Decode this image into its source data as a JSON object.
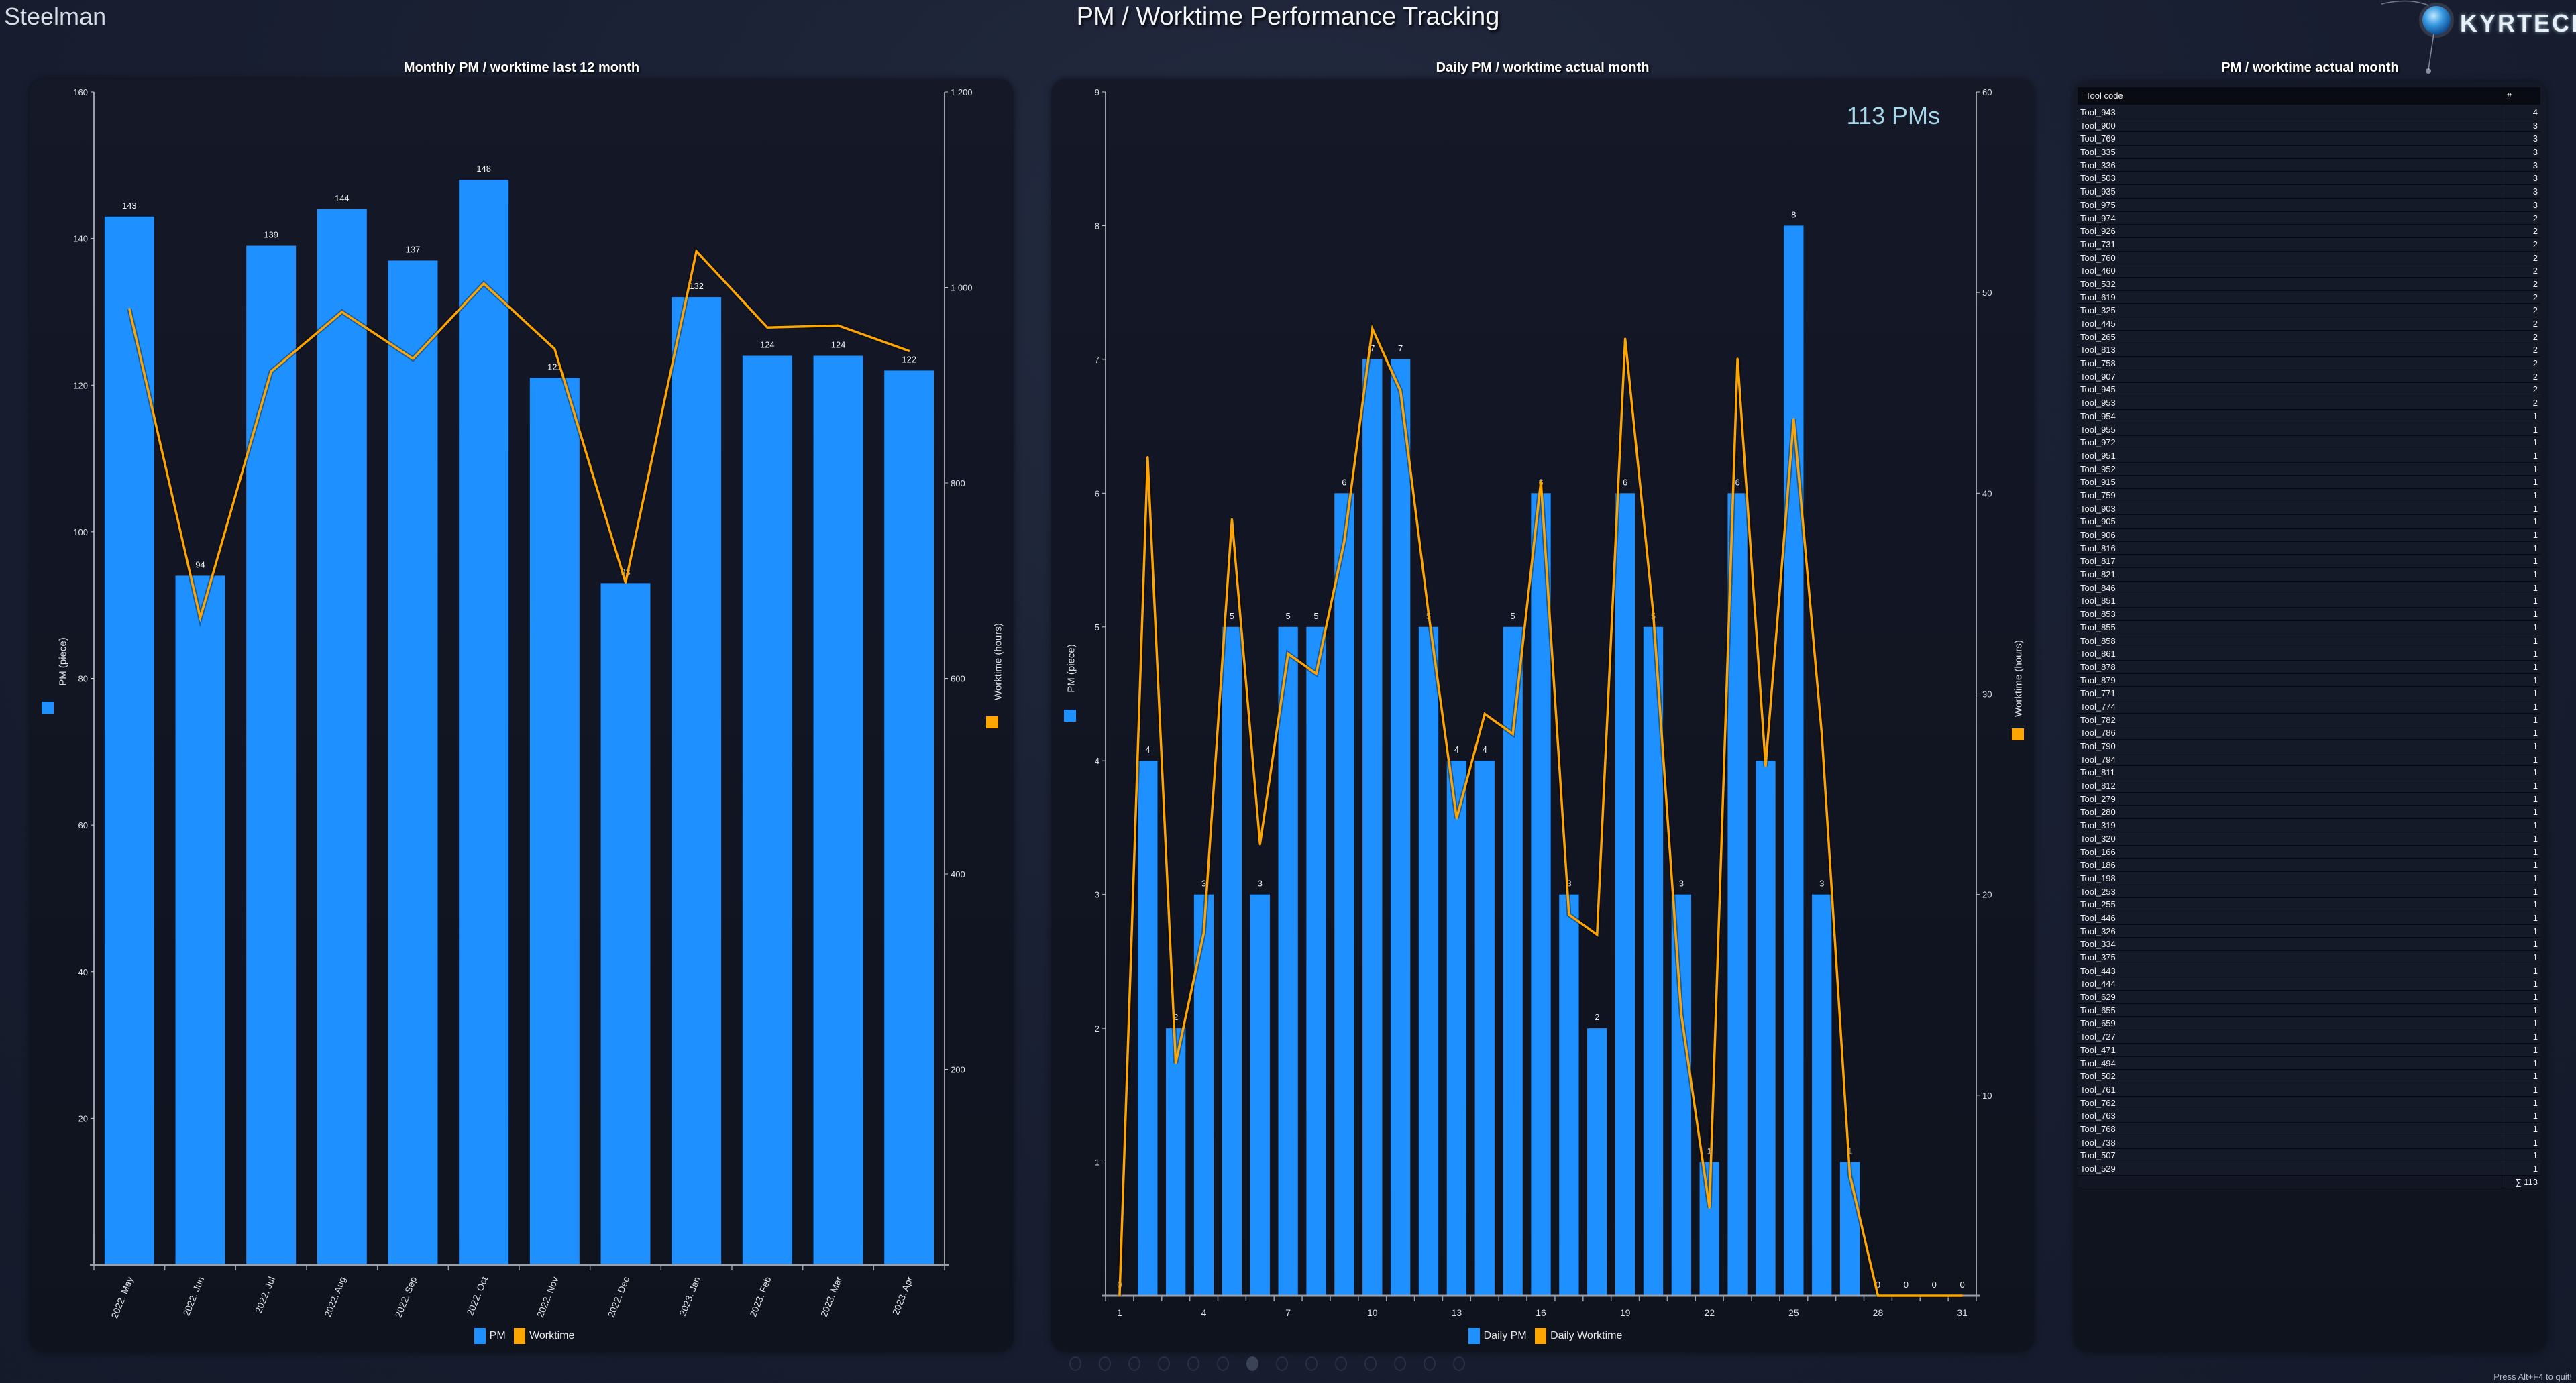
{
  "header": {
    "app_name": "Steelman",
    "title": "PM / Worktime Performance Tracking",
    "logo_text": "KYRTECH"
  },
  "chart_data": [
    {
      "type": "bar+line",
      "title": "Monthly PM / worktime last 12 month",
      "categories": [
        "2022. May",
        "2022. Jun",
        "2022. Jul",
        "2022. Aug",
        "2022. Sep",
        "2022. Oct",
        "2022. Nov",
        "2022. Dec",
        "2023. Jan",
        "2023. Feb",
        "2023. Mar",
        "2023. Apr"
      ],
      "series": [
        {
          "name": "PM",
          "type": "bar",
          "axis": "left",
          "color": "#1e90ff",
          "values": [
            143,
            94,
            139,
            144,
            137,
            148,
            121,
            93,
            132,
            124,
            124,
            122
          ]
        },
        {
          "name": "Worktime",
          "type": "line",
          "axis": "right",
          "color": "#ffa500",
          "values": [
            978,
            662,
            914,
            975,
            927,
            1004,
            937,
            698,
            1037,
            959,
            961,
            935
          ]
        }
      ],
      "ylabel": "PM (piece)",
      "y2label": "Worktime (hours)",
      "ylim": [
        0,
        160
      ],
      "y2lim": [
        0,
        1200
      ],
      "yticks": [
        20,
        40,
        60,
        80,
        100,
        120,
        140,
        160
      ],
      "ytick_labels": [
        "20",
        "40",
        "60",
        "80",
        "100",
        "120",
        "140",
        "160"
      ],
      "y2ticks": [
        200,
        400,
        600,
        800,
        1000,
        1200
      ],
      "y2tick_labels": [
        "200",
        "400",
        "600",
        "800",
        "1 000",
        "1 200"
      ],
      "xtick_labels": [
        "2022. May",
        "2022. Jun",
        "2022. Jul",
        "2022. Aug",
        "2022. Sep",
        "2022. Oct",
        "2022. Nov",
        "2022. Dec",
        "2023. Jan",
        "2023. Feb",
        "2023. Mar",
        "2023. Apr"
      ],
      "data_labels": "bars",
      "grid": false,
      "legend": "bottom"
    },
    {
      "type": "bar+line",
      "title": "Daily PM / worktime actual month",
      "annotation": "113 PMs",
      "categories": [
        1,
        2,
        3,
        4,
        5,
        6,
        7,
        8,
        9,
        10,
        11,
        12,
        13,
        14,
        15,
        16,
        17,
        18,
        19,
        20,
        21,
        22,
        23,
        24,
        25,
        26,
        27,
        28,
        29,
        30,
        31
      ],
      "series": [
        {
          "name": "Daily PM",
          "type": "bar",
          "axis": "left",
          "color": "#1e90ff",
          "values": [
            0,
            4,
            2,
            3,
            5,
            3,
            5,
            5,
            6,
            7,
            7,
            5,
            4,
            4,
            5,
            6,
            3,
            2,
            6,
            5,
            3,
            1,
            6,
            4,
            8,
            3,
            1,
            0,
            0,
            0,
            0
          ]
        },
        {
          "name": "Daily Worktime",
          "type": "line",
          "axis": "right",
          "color": "#ffa500",
          "values": [
            0,
            41.8,
            11.6,
            18.1,
            38.7,
            22.5,
            32.0,
            31.0,
            37.6,
            48.2,
            45.1,
            34.0,
            23.8,
            29.0,
            28.0,
            40.6,
            19.0,
            18.0,
            47.7,
            34.0,
            14.0,
            4.4,
            46.7,
            26.4,
            43.7,
            28.0,
            6.0,
            0,
            0,
            0,
            0
          ]
        }
      ],
      "ylabel": "PM (piece)",
      "y2label": "Worktime (hours)",
      "ylim": [
        0,
        9
      ],
      "y2lim": [
        0,
        60
      ],
      "yticks": [
        1,
        2,
        3,
        4,
        5,
        6,
        7,
        8,
        9
      ],
      "ytick_labels": [
        "1",
        "2",
        "3",
        "4",
        "5",
        "6",
        "7",
        "8",
        "9"
      ],
      "y2ticks": [
        10,
        20,
        30,
        40,
        50,
        60
      ],
      "y2tick_labels": [
        "10",
        "20",
        "30",
        "40",
        "50",
        "60"
      ],
      "xtick_labels": [
        "1",
        "4",
        "7",
        "10",
        "13",
        "16",
        "19",
        "22",
        "25",
        "28",
        "31"
      ],
      "data_labels": "bars",
      "grid": false,
      "legend": "bottom"
    }
  ],
  "table": {
    "title": "PM / worktime actual month",
    "columns": [
      "Tool code",
      "#"
    ],
    "rows": [
      {
        "tool": "Tool_943",
        "count": "4"
      },
      {
        "tool": "Tool_900",
        "count": "3"
      },
      {
        "tool": "Tool_769",
        "count": "3"
      },
      {
        "tool": "Tool_335",
        "count": "3"
      },
      {
        "tool": "Tool_336",
        "count": "3"
      },
      {
        "tool": "Tool_503",
        "count": "3"
      },
      {
        "tool": "Tool_935",
        "count": "3"
      },
      {
        "tool": "Tool_975",
        "count": "3"
      },
      {
        "tool": "Tool_974",
        "count": "2"
      },
      {
        "tool": "Tool_926",
        "count": "2"
      },
      {
        "tool": "Tool_731",
        "count": "2"
      },
      {
        "tool": "Tool_760",
        "count": "2"
      },
      {
        "tool": "Tool_460",
        "count": "2"
      },
      {
        "tool": "Tool_532",
        "count": "2"
      },
      {
        "tool": "Tool_619",
        "count": "2"
      },
      {
        "tool": "Tool_325",
        "count": "2"
      },
      {
        "tool": "Tool_445",
        "count": "2"
      },
      {
        "tool": "Tool_265",
        "count": "2"
      },
      {
        "tool": "Tool_813",
        "count": "2"
      },
      {
        "tool": "Tool_758",
        "count": "2"
      },
      {
        "tool": "Tool_907",
        "count": "2"
      },
      {
        "tool": "Tool_945",
        "count": "2"
      },
      {
        "tool": "Tool_953",
        "count": "2"
      },
      {
        "tool": "Tool_954",
        "count": "1"
      },
      {
        "tool": "Tool_955",
        "count": "1"
      },
      {
        "tool": "Tool_972",
        "count": "1"
      },
      {
        "tool": "Tool_951",
        "count": "1"
      },
      {
        "tool": "Tool_952",
        "count": "1"
      },
      {
        "tool": "Tool_915",
        "count": "1"
      },
      {
        "tool": "Tool_759",
        "count": "1"
      },
      {
        "tool": "Tool_903",
        "count": "1"
      },
      {
        "tool": "Tool_905",
        "count": "1"
      },
      {
        "tool": "Tool_906",
        "count": "1"
      },
      {
        "tool": "Tool_816",
        "count": "1"
      },
      {
        "tool": "Tool_817",
        "count": "1"
      },
      {
        "tool": "Tool_821",
        "count": "1"
      },
      {
        "tool": "Tool_846",
        "count": "1"
      },
      {
        "tool": "Tool_851",
        "count": "1"
      },
      {
        "tool": "Tool_853",
        "count": "1"
      },
      {
        "tool": "Tool_855",
        "count": "1"
      },
      {
        "tool": "Tool_858",
        "count": "1"
      },
      {
        "tool": "Tool_861",
        "count": "1"
      },
      {
        "tool": "Tool_878",
        "count": "1"
      },
      {
        "tool": "Tool_879",
        "count": "1"
      },
      {
        "tool": "Tool_771",
        "count": "1"
      },
      {
        "tool": "Tool_774",
        "count": "1"
      },
      {
        "tool": "Tool_782",
        "count": "1"
      },
      {
        "tool": "Tool_786",
        "count": "1"
      },
      {
        "tool": "Tool_790",
        "count": "1"
      },
      {
        "tool": "Tool_794",
        "count": "1"
      },
      {
        "tool": "Tool_811",
        "count": "1"
      },
      {
        "tool": "Tool_812",
        "count": "1"
      },
      {
        "tool": "Tool_279",
        "count": "1"
      },
      {
        "tool": "Tool_280",
        "count": "1"
      },
      {
        "tool": "Tool_319",
        "count": "1"
      },
      {
        "tool": "Tool_320",
        "count": "1"
      },
      {
        "tool": "Tool_166",
        "count": "1"
      },
      {
        "tool": "Tool_186",
        "count": "1"
      },
      {
        "tool": "Tool_198",
        "count": "1"
      },
      {
        "tool": "Tool_253",
        "count": "1"
      },
      {
        "tool": "Tool_255",
        "count": "1"
      },
      {
        "tool": "Tool_446",
        "count": "1"
      },
      {
        "tool": "Tool_326",
        "count": "1"
      },
      {
        "tool": "Tool_334",
        "count": "1"
      },
      {
        "tool": "Tool_375",
        "count": "1"
      },
      {
        "tool": "Tool_443",
        "count": "1"
      },
      {
        "tool": "Tool_444",
        "count": "1"
      },
      {
        "tool": "Tool_629",
        "count": "1"
      },
      {
        "tool": "Tool_655",
        "count": "1"
      },
      {
        "tool": "Tool_659",
        "count": "1"
      },
      {
        "tool": "Tool_727",
        "count": "1"
      },
      {
        "tool": "Tool_471",
        "count": "1"
      },
      {
        "tool": "Tool_494",
        "count": "1"
      },
      {
        "tool": "Tool_502",
        "count": "1"
      },
      {
        "tool": "Tool_761",
        "count": "1"
      },
      {
        "tool": "Tool_762",
        "count": "1"
      },
      {
        "tool": "Tool_763",
        "count": "1"
      },
      {
        "tool": "Tool_768",
        "count": "1"
      },
      {
        "tool": "Tool_738",
        "count": "1"
      },
      {
        "tool": "Tool_507",
        "count": "1"
      },
      {
        "tool": "Tool_529",
        "count": "1"
      }
    ],
    "total": "∑ 113"
  },
  "pagination": {
    "pages": 14,
    "active_page": 7
  },
  "footer": {
    "hint": "Press Alt+F4 to quit!"
  }
}
